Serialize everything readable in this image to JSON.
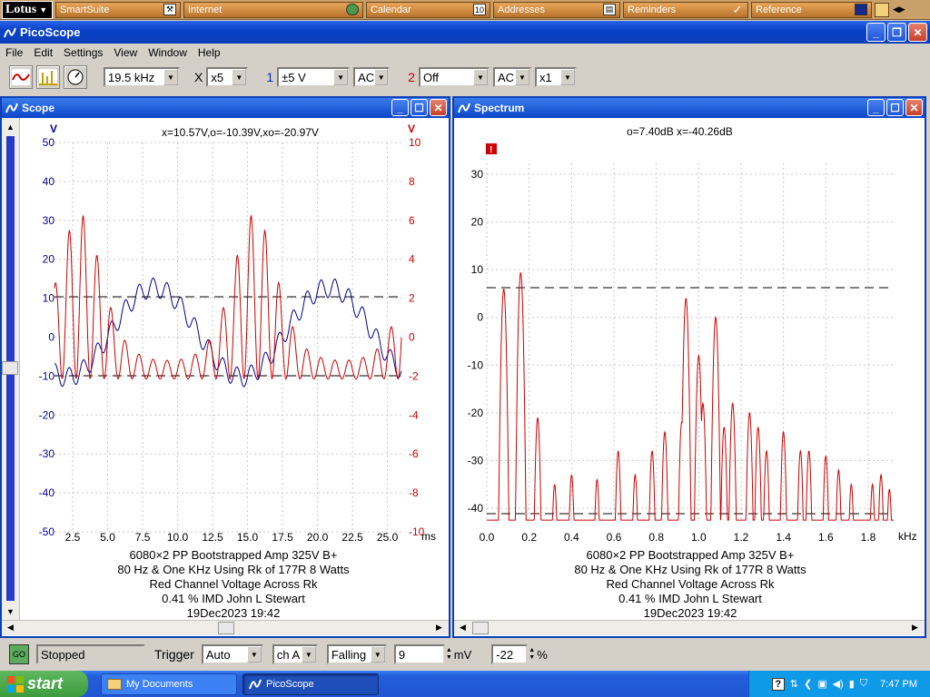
{
  "lotus": {
    "logo": "Lotus",
    "items": [
      {
        "label": "SmartSuite",
        "icon": "tools-icon"
      },
      {
        "label": "Internet",
        "icon": "globe-icon"
      },
      {
        "label": "Calendar",
        "icon": "calendar-icon"
      },
      {
        "label": "Addresses",
        "icon": "address-card-icon"
      },
      {
        "label": "Reminders",
        "icon": "checkmark-icon"
      },
      {
        "label": "Reference",
        "icon": "book-icon"
      }
    ]
  },
  "app": {
    "title": "PicoScope"
  },
  "menu": [
    "File",
    "Edit",
    "Settings",
    "View",
    "Window",
    "Help"
  ],
  "toolbar": {
    "sample_rate": "19.5 kHz",
    "x_label": "X",
    "x_mult": "x5",
    "ch1_label": "1",
    "ch1_range": "±5 V",
    "ch1_coupling": "AC",
    "ch2_label": "2",
    "ch2_range": "Off",
    "ch2_coupling": "AC",
    "ch2_mult": "x1"
  },
  "scope": {
    "title": "Scope",
    "readout": "x=10.57V,o=-10.39V,xo=-20.97V",
    "left_unit": "V",
    "right_unit": "V",
    "x_unit": "ms",
    "left_ticks": [
      "50",
      "40",
      "30",
      "20",
      "10",
      "0",
      "-10",
      "-20",
      "-30",
      "-40",
      "-50"
    ],
    "right_ticks": [
      "10",
      "8",
      "6",
      "4",
      "2",
      "0",
      "-2",
      "-4",
      "-6",
      "-8",
      "-10"
    ],
    "x_ticks": [
      "2.5",
      "5.0",
      "7.5",
      "10.0",
      "12.5",
      "15.0",
      "17.5",
      "20.0",
      "22.5",
      "25.0"
    ],
    "caption": [
      "6080×2 PP Bootstrapped Amp 325V B+",
      "80 Hz & One KHz Using Rk of 177R 8 Watts",
      "Red Channel Voltage Across Rk",
      "0.41 % IMD John L Stewart",
      "19Dec2023  19:42"
    ]
  },
  "spectrum": {
    "title": "Spectrum",
    "readout": "o=7.40dB  x=-40.26dB",
    "y_ticks": [
      "30",
      "20",
      "10",
      "0",
      "-10",
      "-20",
      "-30",
      "-40"
    ],
    "x_ticks": [
      "0.0",
      "0.2",
      "0.4",
      "0.6",
      "0.8",
      "1.0",
      "1.2",
      "1.4",
      "1.6",
      "1.8"
    ],
    "x_unit": "kHz",
    "caption": [
      "6080×2 PP Bootstrapped Amp 325V B+",
      "80 Hz & One KHz Using Rk of 177R 8 Watts",
      "Red Channel Voltage Across Rk",
      "0.41 % IMD John L Stewart",
      "19Dec2023  19:42"
    ]
  },
  "status": {
    "go_label": "GO",
    "state": "Stopped",
    "trigger_label": "Trigger",
    "trigger_mode": "Auto",
    "trigger_channel": "ch A",
    "trigger_edge": "Falling",
    "trigger_level": "9",
    "level_unit": "mV",
    "pretrigger": "-22",
    "pretrigger_unit": "%"
  },
  "taskbar": {
    "start": "start",
    "tasks": [
      "My Documents",
      "PicoScope"
    ],
    "clock": "7:47 PM"
  },
  "colors": {
    "red": "#cc0000",
    "blue": "#00008b",
    "title_blue": "#0a46c8"
  }
}
